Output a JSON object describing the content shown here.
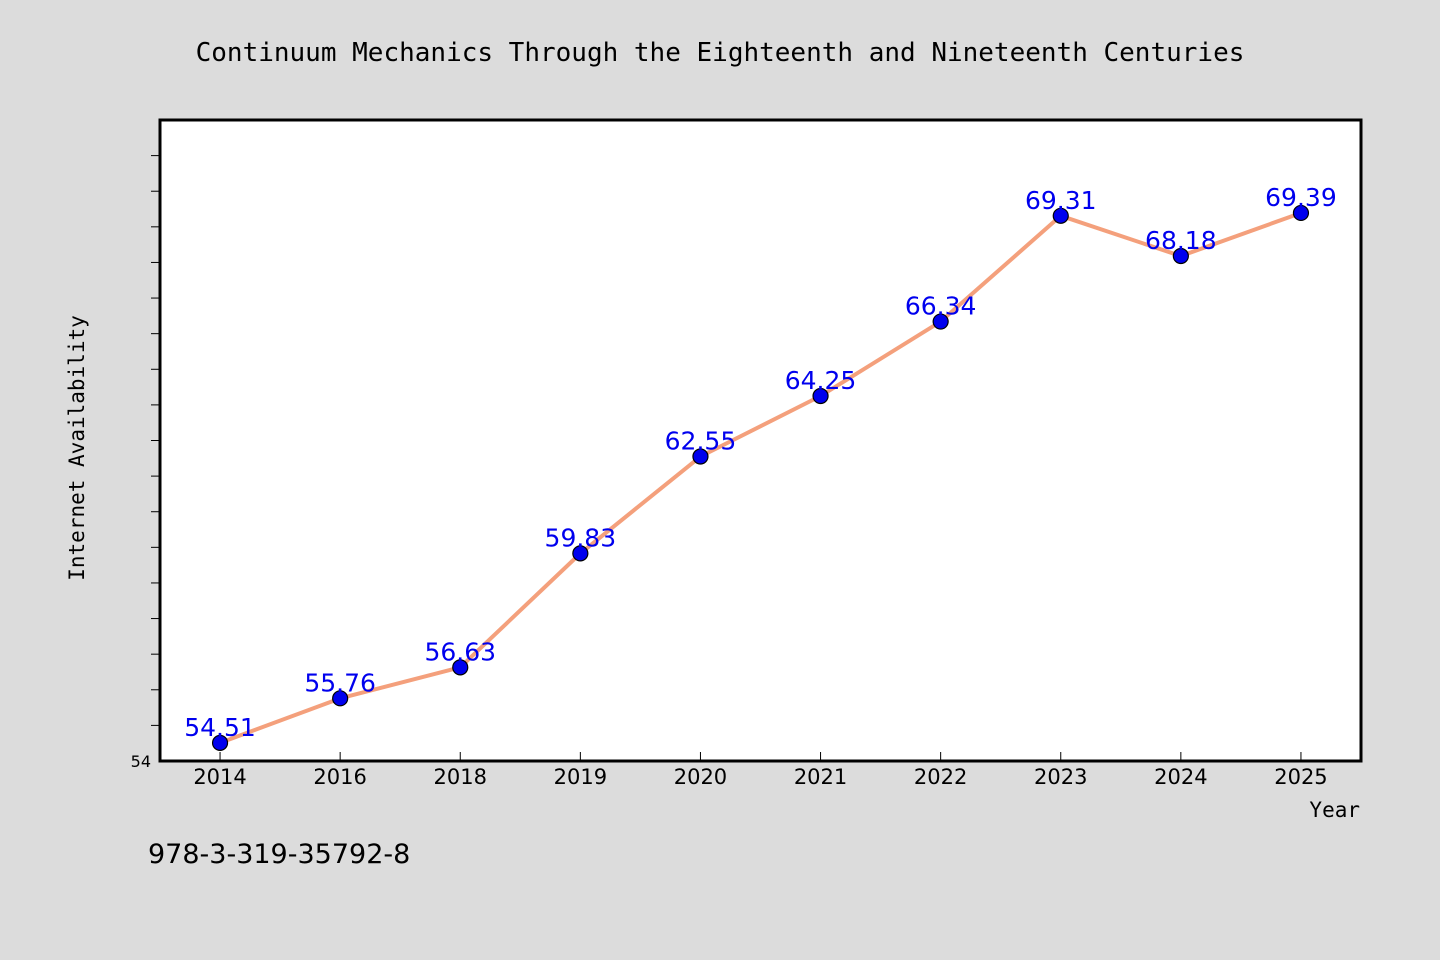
{
  "chart_data": {
    "type": "line",
    "title": "Continuum Mechanics Through the Eighteenth and Nineteenth Centuries",
    "xlabel": "Year",
    "ylabel": "Internet Availability",
    "categories": [
      "2014",
      "2016",
      "2018",
      "2019",
      "2020",
      "2021",
      "2022",
      "2023",
      "2024",
      "2025"
    ],
    "series": [
      {
        "values": [
          54.51,
          55.76,
          56.63,
          59.83,
          62.55,
          64.25,
          66.34,
          69.31,
          68.18,
          69.39
        ],
        "data_labels": [
          "54.51",
          "55.76",
          "56.63",
          "59.83",
          "62.55",
          "64.25",
          "66.34",
          "69.31",
          "68.18",
          "69.39"
        ]
      }
    ],
    "ylim": [
      54,
      72
    ],
    "y_tick_labels": [
      "54"
    ],
    "grid": false,
    "legend": "none",
    "colors": {
      "line": "#f4a07c",
      "marker": "#0000ee",
      "marker_edge": "#000000",
      "data_label": "#0000ee",
      "plot_background": "#ffffff",
      "page_background": "#dcdcdc"
    }
  },
  "footer": {
    "isbn": "978-3-319-35792-8"
  }
}
